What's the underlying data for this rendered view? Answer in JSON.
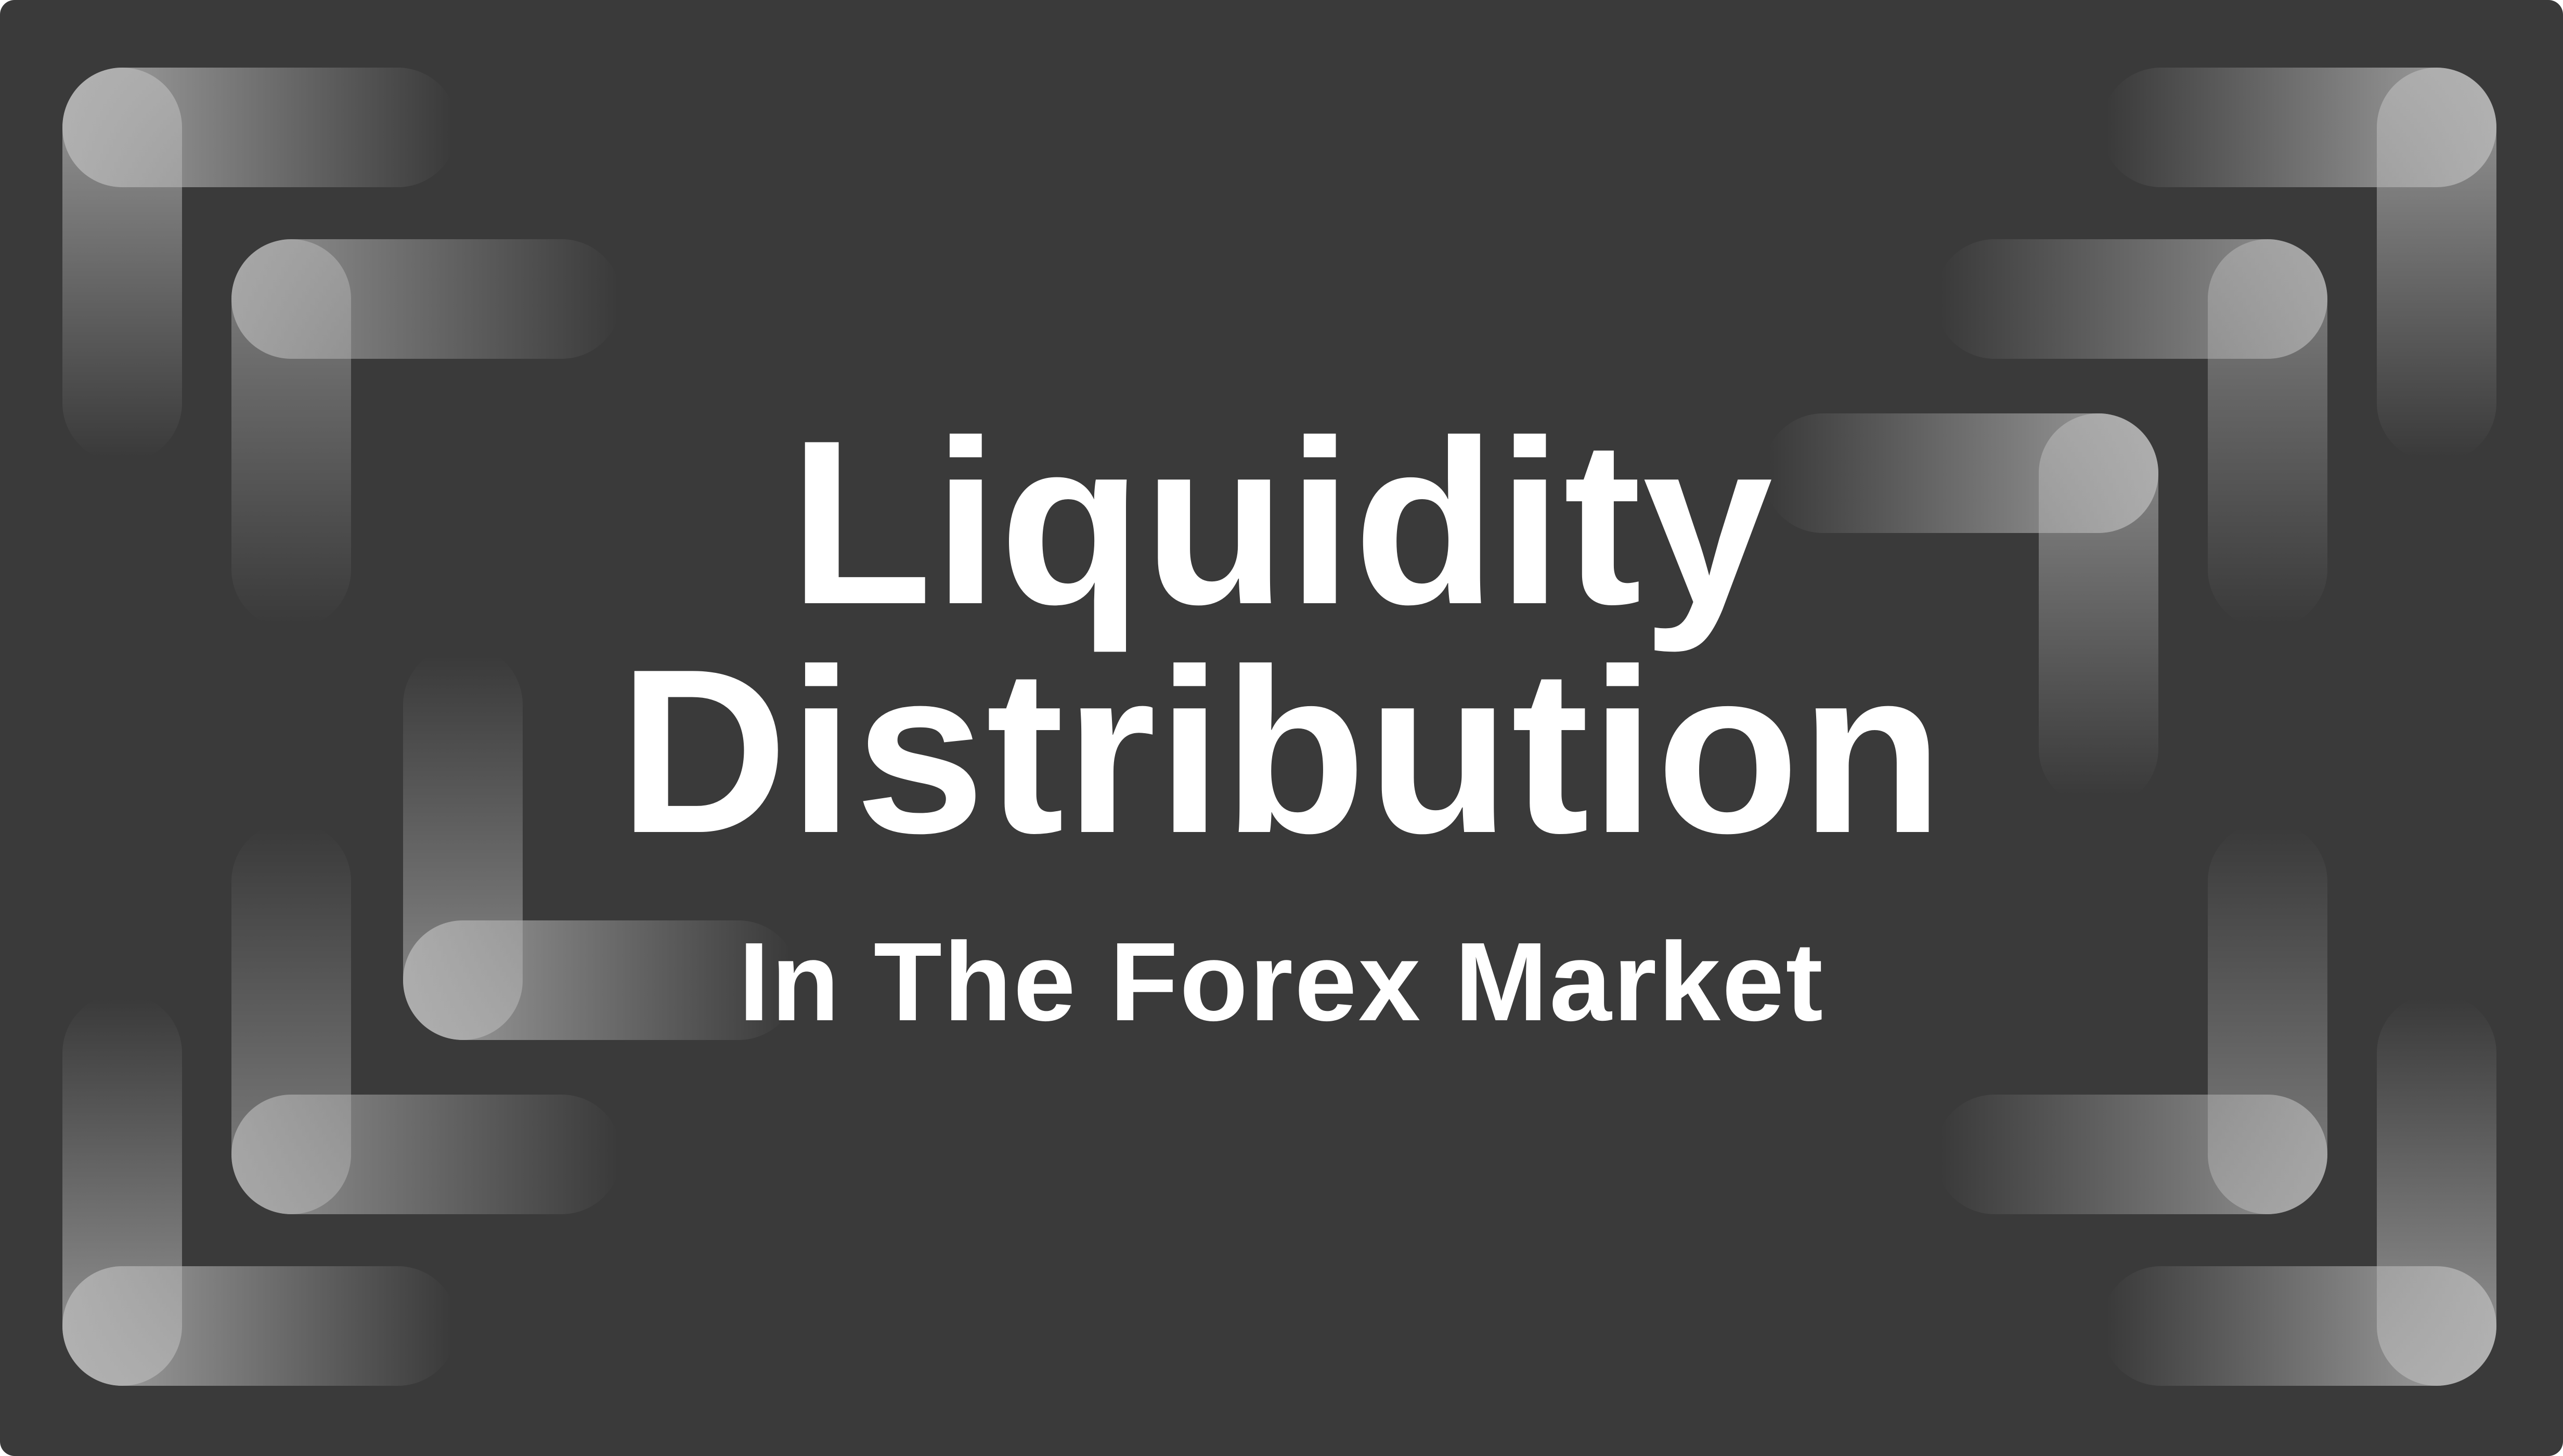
{
  "title": {
    "line1": "Liquidity",
    "line2": "Distribution"
  },
  "subtitle": "In The Forex Market",
  "colors": {
    "background": "#3a3a3a",
    "text": "#ffffff",
    "bracket": "#b4b4b4"
  },
  "decorations": {
    "left": "corner-bracket-shapes",
    "right": "corner-bracket-shapes"
  }
}
